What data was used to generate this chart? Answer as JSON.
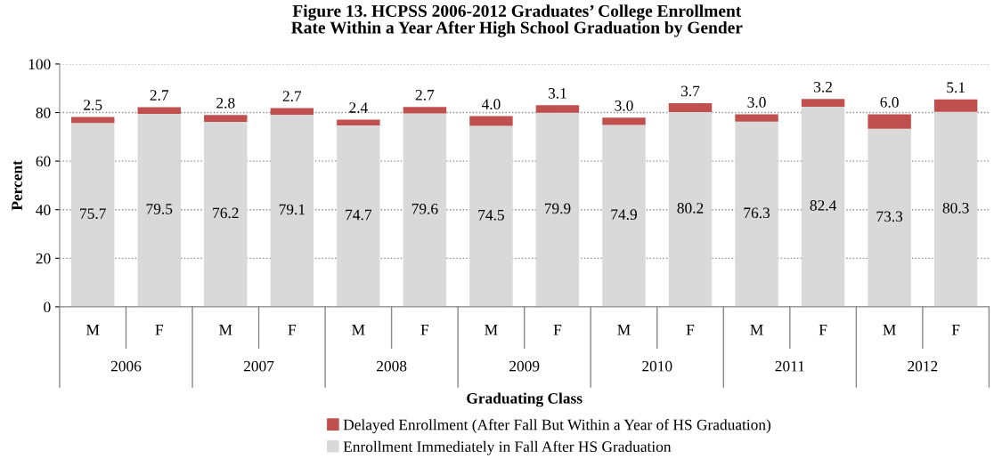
{
  "chart_data": {
    "type": "bar",
    "title": "Figure 13. HCPSS 2006-2012 Graduates’ College Enrollment\nRate Within a Year After High School Graduation by Gender",
    "xlabel": "Graduating Class",
    "ylabel": "Percent",
    "categories": [
      "M",
      "F",
      "M",
      "F",
      "M",
      "F",
      "M",
      "F",
      "M",
      "F",
      "M",
      "F",
      "M",
      "F"
    ],
    "annotations": [
      "2006",
      "2007",
      "2008",
      "2009",
      "2010",
      "2011",
      "2012"
    ],
    "stacked": true,
    "data_labels": true,
    "ylim": [
      0,
      100
    ],
    "yticks": [
      0,
      20,
      40,
      60,
      80,
      100
    ],
    "grid": "y",
    "legend": "bottom",
    "series": [
      {
        "name": "Enrollment Immediately in Fall After HS Graduation",
        "color": "#d9d9d9",
        "values": [
          75.7,
          79.5,
          76.2,
          79.1,
          74.7,
          79.6,
          74.5,
          79.9,
          74.9,
          80.2,
          76.3,
          82.4,
          73.3,
          80.3
        ],
        "value_labels": [
          "75.7",
          "79.5",
          "76.2",
          "79.1",
          "74.7",
          "79.6",
          "74.5",
          "79.9",
          "74.9",
          "80.2",
          "76.3",
          "82.4",
          "73.3",
          "80.3"
        ]
      },
      {
        "name": "Delayed Enrollment (After Fall But Within a Year of HS Graduation)",
        "color": "#c0504d",
        "values": [
          2.5,
          2.7,
          2.8,
          2.7,
          2.4,
          2.7,
          4.0,
          3.1,
          3.0,
          3.7,
          3.0,
          3.2,
          6.0,
          5.1
        ],
        "value_labels": [
          "2.5",
          "2.7",
          "2.8",
          "2.7",
          "2.4",
          "2.7",
          "4.0",
          "3.1",
          "3.0",
          "3.7",
          "3.0",
          "3.2",
          "6.0",
          "5.1"
        ]
      }
    ]
  }
}
